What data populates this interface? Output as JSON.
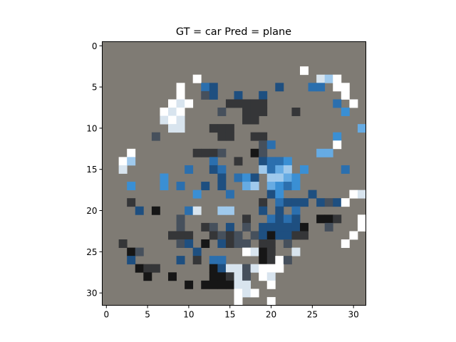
{
  "chart_data": {
    "type": "heatmap",
    "title": "GT = car Pred = plane",
    "xlabel": "",
    "ylabel": "",
    "xlim": [
      -0.5,
      31.5
    ],
    "ylim": [
      31.5,
      -0.5
    ],
    "xticks": [
      0,
      5,
      10,
      15,
      20,
      25,
      30
    ],
    "yticks": [
      0,
      5,
      10,
      15,
      20,
      25,
      30
    ],
    "grid": false,
    "background_color": "#7f7b74",
    "palette": {
      "W": "#ffffff",
      "V": "#d8e4ee",
      "A": "#9fc9ec",
      "L": "#66abe3",
      "M": "#3a8fd4",
      "B": "#2b6fae",
      "D": "#1e4f80",
      "S": "#46505c",
      "G": "#353638",
      "K": "#161616"
    },
    "cells": [
      {
        "x": 24,
        "y": 3,
        "c": "W"
      },
      {
        "x": 11,
        "y": 4,
        "c": "W"
      },
      {
        "x": 26,
        "y": 4,
        "c": "V"
      },
      {
        "x": 27,
        "y": 4,
        "c": "A"
      },
      {
        "x": 28,
        "y": 4,
        "c": "W"
      },
      {
        "x": 9,
        "y": 5,
        "c": "W"
      },
      {
        "x": 12,
        "y": 5,
        "c": "B"
      },
      {
        "x": 13,
        "y": 5,
        "c": "D"
      },
      {
        "x": 21,
        "y": 5,
        "c": "D"
      },
      {
        "x": 25,
        "y": 5,
        "c": "B"
      },
      {
        "x": 26,
        "y": 5,
        "c": "B"
      },
      {
        "x": 28,
        "y": 5,
        "c": "W"
      },
      {
        "x": 29,
        "y": 5,
        "c": "W"
      },
      {
        "x": 9,
        "y": 6,
        "c": "W"
      },
      {
        "x": 12,
        "y": 6,
        "c": "S"
      },
      {
        "x": 13,
        "y": 6,
        "c": "D"
      },
      {
        "x": 16,
        "y": 6,
        "c": "D"
      },
      {
        "x": 19,
        "y": 6,
        "c": "D"
      },
      {
        "x": 29,
        "y": 6,
        "c": "W"
      },
      {
        "x": 8,
        "y": 7,
        "c": "W"
      },
      {
        "x": 9,
        "y": 7,
        "c": "V"
      },
      {
        "x": 10,
        "y": 7,
        "c": "W"
      },
      {
        "x": 15,
        "y": 7,
        "c": "G"
      },
      {
        "x": 16,
        "y": 7,
        "c": "G"
      },
      {
        "x": 17,
        "y": 7,
        "c": "G"
      },
      {
        "x": 18,
        "y": 7,
        "c": "G"
      },
      {
        "x": 19,
        "y": 7,
        "c": "G"
      },
      {
        "x": 28,
        "y": 7,
        "c": "B"
      },
      {
        "x": 30,
        "y": 7,
        "c": "W"
      },
      {
        "x": 7,
        "y": 8,
        "c": "W"
      },
      {
        "x": 8,
        "y": 8,
        "c": "V"
      },
      {
        "x": 9,
        "y": 8,
        "c": "W"
      },
      {
        "x": 14,
        "y": 8,
        "c": "S"
      },
      {
        "x": 17,
        "y": 8,
        "c": "G"
      },
      {
        "x": 18,
        "y": 8,
        "c": "G"
      },
      {
        "x": 19,
        "y": 8,
        "c": "G"
      },
      {
        "x": 23,
        "y": 8,
        "c": "G"
      },
      {
        "x": 29,
        "y": 8,
        "c": "M"
      },
      {
        "x": 7,
        "y": 9,
        "c": "V"
      },
      {
        "x": 8,
        "y": 9,
        "c": "W"
      },
      {
        "x": 9,
        "y": 9,
        "c": "V"
      },
      {
        "x": 17,
        "y": 9,
        "c": "G"
      },
      {
        "x": 18,
        "y": 9,
        "c": "G"
      },
      {
        "x": 8,
        "y": 10,
        "c": "V"
      },
      {
        "x": 9,
        "y": 10,
        "c": "V"
      },
      {
        "x": 13,
        "y": 10,
        "c": "G"
      },
      {
        "x": 14,
        "y": 10,
        "c": "G"
      },
      {
        "x": 15,
        "y": 10,
        "c": "G"
      },
      {
        "x": 31,
        "y": 10,
        "c": "L"
      },
      {
        "x": 6,
        "y": 11,
        "c": "S"
      },
      {
        "x": 14,
        "y": 11,
        "c": "G"
      },
      {
        "x": 15,
        "y": 11,
        "c": "G"
      },
      {
        "x": 18,
        "y": 11,
        "c": "G"
      },
      {
        "x": 19,
        "y": 11,
        "c": "G"
      },
      {
        "x": 28,
        "y": 11,
        "c": "M"
      },
      {
        "x": 19,
        "y": 12,
        "c": "S"
      },
      {
        "x": 20,
        "y": 12,
        "c": "B"
      },
      {
        "x": 28,
        "y": 12,
        "c": "W"
      },
      {
        "x": 3,
        "y": 13,
        "c": "W"
      },
      {
        "x": 11,
        "y": 13,
        "c": "G"
      },
      {
        "x": 12,
        "y": 13,
        "c": "G"
      },
      {
        "x": 13,
        "y": 13,
        "c": "G"
      },
      {
        "x": 14,
        "y": 13,
        "c": "S"
      },
      {
        "x": 18,
        "y": 13,
        "c": "K"
      },
      {
        "x": 19,
        "y": 13,
        "c": "S"
      },
      {
        "x": 26,
        "y": 13,
        "c": "L"
      },
      {
        "x": 27,
        "y": 13,
        "c": "L"
      },
      {
        "x": 2,
        "y": 14,
        "c": "W"
      },
      {
        "x": 3,
        "y": 14,
        "c": "A"
      },
      {
        "x": 13,
        "y": 14,
        "c": "B"
      },
      {
        "x": 16,
        "y": 14,
        "c": "G"
      },
      {
        "x": 19,
        "y": 14,
        "c": "D"
      },
      {
        "x": 20,
        "y": 14,
        "c": "B"
      },
      {
        "x": 21,
        "y": 14,
        "c": "B"
      },
      {
        "x": 22,
        "y": 14,
        "c": "M"
      },
      {
        "x": 2,
        "y": 15,
        "c": "V"
      },
      {
        "x": 10,
        "y": 15,
        "c": "B"
      },
      {
        "x": 13,
        "y": 15,
        "c": "D"
      },
      {
        "x": 14,
        "y": 15,
        "c": "B"
      },
      {
        "x": 19,
        "y": 15,
        "c": "A"
      },
      {
        "x": 20,
        "y": 15,
        "c": "B"
      },
      {
        "x": 21,
        "y": 15,
        "c": "L"
      },
      {
        "x": 22,
        "y": 15,
        "c": "A"
      },
      {
        "x": 24,
        "y": 15,
        "c": "M"
      },
      {
        "x": 29,
        "y": 15,
        "c": "B"
      },
      {
        "x": 7,
        "y": 16,
        "c": "M"
      },
      {
        "x": 14,
        "y": 16,
        "c": "D"
      },
      {
        "x": 16,
        "y": 16,
        "c": "B"
      },
      {
        "x": 17,
        "y": 16,
        "c": "M"
      },
      {
        "x": 18,
        "y": 16,
        "c": "D"
      },
      {
        "x": 20,
        "y": 16,
        "c": "A"
      },
      {
        "x": 21,
        "y": 16,
        "c": "A"
      },
      {
        "x": 22,
        "y": 16,
        "c": "L"
      },
      {
        "x": 23,
        "y": 16,
        "c": "M"
      },
      {
        "x": 3,
        "y": 17,
        "c": "M"
      },
      {
        "x": 7,
        "y": 17,
        "c": "M"
      },
      {
        "x": 9,
        "y": 17,
        "c": "B"
      },
      {
        "x": 12,
        "y": 17,
        "c": "D"
      },
      {
        "x": 14,
        "y": 17,
        "c": "D"
      },
      {
        "x": 17,
        "y": 17,
        "c": "L"
      },
      {
        "x": 18,
        "y": 17,
        "c": "A"
      },
      {
        "x": 20,
        "y": 17,
        "c": "L"
      },
      {
        "x": 21,
        "y": 17,
        "c": "M"
      },
      {
        "x": 22,
        "y": 17,
        "c": "B"
      },
      {
        "x": 23,
        "y": 17,
        "c": "M"
      },
      {
        "x": 11,
        "y": 18,
        "c": "M"
      },
      {
        "x": 15,
        "y": 18,
        "c": "B"
      },
      {
        "x": 20,
        "y": 18,
        "c": "D"
      },
      {
        "x": 21,
        "y": 18,
        "c": "M"
      },
      {
        "x": 25,
        "y": 18,
        "c": "D"
      },
      {
        "x": 30,
        "y": 18,
        "c": "W"
      },
      {
        "x": 31,
        "y": 18,
        "c": "V"
      },
      {
        "x": 3,
        "y": 19,
        "c": "G"
      },
      {
        "x": 19,
        "y": 19,
        "c": "G"
      },
      {
        "x": 21,
        "y": 19,
        "c": "B"
      },
      {
        "x": 22,
        "y": 19,
        "c": "D"
      },
      {
        "x": 23,
        "y": 19,
        "c": "D"
      },
      {
        "x": 24,
        "y": 19,
        "c": "D"
      },
      {
        "x": 26,
        "y": 19,
        "c": "D"
      },
      {
        "x": 27,
        "y": 19,
        "c": "S"
      },
      {
        "x": 28,
        "y": 19,
        "c": "D"
      },
      {
        "x": 29,
        "y": 19,
        "c": "W"
      },
      {
        "x": 4,
        "y": 20,
        "c": "D"
      },
      {
        "x": 6,
        "y": 20,
        "c": "K"
      },
      {
        "x": 10,
        "y": 20,
        "c": "B"
      },
      {
        "x": 11,
        "y": 20,
        "c": "V"
      },
      {
        "x": 14,
        "y": 20,
        "c": "A"
      },
      {
        "x": 15,
        "y": 20,
        "c": "A"
      },
      {
        "x": 19,
        "y": 20,
        "c": "D"
      },
      {
        "x": 21,
        "y": 20,
        "c": "D"
      },
      {
        "x": 23,
        "y": 20,
        "c": "B"
      },
      {
        "x": 9,
        "y": 21,
        "c": "S"
      },
      {
        "x": 17,
        "y": 21,
        "c": "G"
      },
      {
        "x": 20,
        "y": 21,
        "c": "B"
      },
      {
        "x": 21,
        "y": 21,
        "c": "D"
      },
      {
        "x": 22,
        "y": 21,
        "c": "B"
      },
      {
        "x": 23,
        "y": 21,
        "c": "D"
      },
      {
        "x": 26,
        "y": 21,
        "c": "K"
      },
      {
        "x": 27,
        "y": 21,
        "c": "K"
      },
      {
        "x": 28,
        "y": 21,
        "c": "G"
      },
      {
        "x": 31,
        "y": 21,
        "c": "W"
      },
      {
        "x": 9,
        "y": 22,
        "c": "S"
      },
      {
        "x": 12,
        "y": 22,
        "c": "G"
      },
      {
        "x": 13,
        "y": 22,
        "c": "S"
      },
      {
        "x": 15,
        "y": 22,
        "c": "D"
      },
      {
        "x": 17,
        "y": 22,
        "c": "S"
      },
      {
        "x": 19,
        "y": 22,
        "c": "D"
      },
      {
        "x": 20,
        "y": 22,
        "c": "D"
      },
      {
        "x": 21,
        "y": 22,
        "c": "D"
      },
      {
        "x": 22,
        "y": 22,
        "c": "D"
      },
      {
        "x": 23,
        "y": 22,
        "c": "D"
      },
      {
        "x": 24,
        "y": 22,
        "c": "K"
      },
      {
        "x": 27,
        "y": 22,
        "c": "S"
      },
      {
        "x": 31,
        "y": 22,
        "c": "W"
      },
      {
        "x": 8,
        "y": 23,
        "c": "G"
      },
      {
        "x": 9,
        "y": 23,
        "c": "G"
      },
      {
        "x": 10,
        "y": 23,
        "c": "G"
      },
      {
        "x": 13,
        "y": 23,
        "c": "G"
      },
      {
        "x": 14,
        "y": 23,
        "c": "S"
      },
      {
        "x": 15,
        "y": 23,
        "c": "G"
      },
      {
        "x": 16,
        "y": 23,
        "c": "S"
      },
      {
        "x": 18,
        "y": 23,
        "c": "S"
      },
      {
        "x": 19,
        "y": 23,
        "c": "D"
      },
      {
        "x": 20,
        "y": 23,
        "c": "K"
      },
      {
        "x": 21,
        "y": 23,
        "c": "D"
      },
      {
        "x": 22,
        "y": 23,
        "c": "D"
      },
      {
        "x": 23,
        "y": 23,
        "c": "G"
      },
      {
        "x": 24,
        "y": 23,
        "c": "G"
      },
      {
        "x": 30,
        "y": 23,
        "c": "W"
      },
      {
        "x": 2,
        "y": 24,
        "c": "G"
      },
      {
        "x": 9,
        "y": 24,
        "c": "S"
      },
      {
        "x": 10,
        "y": 24,
        "c": "D"
      },
      {
        "x": 12,
        "y": 24,
        "c": "K"
      },
      {
        "x": 14,
        "y": 24,
        "c": "D"
      },
      {
        "x": 15,
        "y": 24,
        "c": "G"
      },
      {
        "x": 16,
        "y": 24,
        "c": "S"
      },
      {
        "x": 17,
        "y": 24,
        "c": "S"
      },
      {
        "x": 19,
        "y": 24,
        "c": "G"
      },
      {
        "x": 20,
        "y": 24,
        "c": "G"
      },
      {
        "x": 22,
        "y": 24,
        "c": "S"
      },
      {
        "x": 29,
        "y": 24,
        "c": "W"
      },
      {
        "x": 3,
        "y": 25,
        "c": "K"
      },
      {
        "x": 4,
        "y": 25,
        "c": "S"
      },
      {
        "x": 11,
        "y": 25,
        "c": "D"
      },
      {
        "x": 17,
        "y": 25,
        "c": "W"
      },
      {
        "x": 18,
        "y": 25,
        "c": "V"
      },
      {
        "x": 19,
        "y": 25,
        "c": "K"
      },
      {
        "x": 20,
        "y": 25,
        "c": "G"
      },
      {
        "x": 23,
        "y": 25,
        "c": "V"
      },
      {
        "x": 3,
        "y": 26,
        "c": "D"
      },
      {
        "x": 9,
        "y": 26,
        "c": "D"
      },
      {
        "x": 11,
        "y": 26,
        "c": "G"
      },
      {
        "x": 13,
        "y": 26,
        "c": "B"
      },
      {
        "x": 14,
        "y": 26,
        "c": "B"
      },
      {
        "x": 19,
        "y": 26,
        "c": "K"
      },
      {
        "x": 20,
        "y": 26,
        "c": "G"
      },
      {
        "x": 21,
        "y": 26,
        "c": "W"
      },
      {
        "x": 22,
        "y": 26,
        "c": "S"
      },
      {
        "x": 4,
        "y": 27,
        "c": "K"
      },
      {
        "x": 5,
        "y": 27,
        "c": "G"
      },
      {
        "x": 6,
        "y": 27,
        "c": "G"
      },
      {
        "x": 13,
        "y": 27,
        "c": "K"
      },
      {
        "x": 14,
        "y": 27,
        "c": "D"
      },
      {
        "x": 15,
        "y": 27,
        "c": "V"
      },
      {
        "x": 16,
        "y": 27,
        "c": "V"
      },
      {
        "x": 17,
        "y": 27,
        "c": "S"
      },
      {
        "x": 18,
        "y": 27,
        "c": "V"
      },
      {
        "x": 19,
        "y": 27,
        "c": "W"
      },
      {
        "x": 20,
        "y": 27,
        "c": "W"
      },
      {
        "x": 21,
        "y": 27,
        "c": "W"
      },
      {
        "x": 5,
        "y": 28,
        "c": "K"
      },
      {
        "x": 8,
        "y": 28,
        "c": "K"
      },
      {
        "x": 13,
        "y": 28,
        "c": "K"
      },
      {
        "x": 14,
        "y": 28,
        "c": "K"
      },
      {
        "x": 15,
        "y": 28,
        "c": "G"
      },
      {
        "x": 16,
        "y": 28,
        "c": "V"
      },
      {
        "x": 17,
        "y": 28,
        "c": "S"
      },
      {
        "x": 19,
        "y": 28,
        "c": "W"
      },
      {
        "x": 20,
        "y": 28,
        "c": "V"
      },
      {
        "x": 10,
        "y": 29,
        "c": "K"
      },
      {
        "x": 12,
        "y": 29,
        "c": "K"
      },
      {
        "x": 13,
        "y": 29,
        "c": "K"
      },
      {
        "x": 14,
        "y": 29,
        "c": "K"
      },
      {
        "x": 15,
        "y": 29,
        "c": "K"
      },
      {
        "x": 16,
        "y": 29,
        "c": "V"
      },
      {
        "x": 17,
        "y": 29,
        "c": "V"
      },
      {
        "x": 20,
        "y": 29,
        "c": "W"
      },
      {
        "x": 16,
        "y": 30,
        "c": "W"
      },
      {
        "x": 17,
        "y": 30,
        "c": "V"
      },
      {
        "x": 18,
        "y": 30,
        "c": "W"
      },
      {
        "x": 16,
        "y": 31,
        "c": "W"
      },
      {
        "x": 20,
        "y": 31,
        "c": "W"
      }
    ]
  }
}
